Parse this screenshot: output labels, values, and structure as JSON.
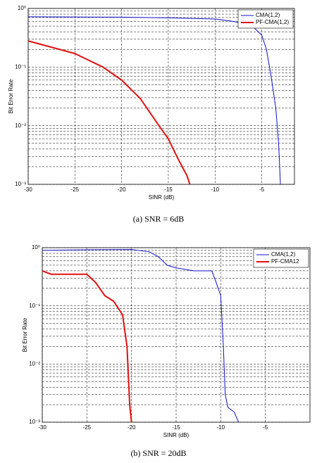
{
  "chart_data": [
    {
      "type": "line",
      "caption": "(a) SNR = 6dB",
      "xlabel": "SINR (dB)",
      "ylabel": "Bit Error Rate",
      "log_y": true,
      "grid": true,
      "legend": "upper right",
      "xlim": [
        -30,
        -1.5
      ],
      "xticks": [
        -30,
        -25,
        -20,
        -15,
        -10,
        -5
      ],
      "ylim": [
        0.001,
        1
      ],
      "yticks": [
        {
          "value": 0.001,
          "label": "10⁻³"
        },
        {
          "value": 0.01,
          "label": "10⁻²"
        },
        {
          "value": 0.1,
          "label": "10⁻¹"
        },
        {
          "value": 1,
          "label": "10⁰"
        }
      ],
      "series": [
        {
          "name": "CMA(1,2)",
          "color": "#1010c8",
          "x": [
            -30,
            -20,
            -15,
            -10,
            -8,
            -6,
            -5,
            -4.5,
            -4,
            -3.5,
            -3.2,
            -3
          ],
          "values": [
            0.72,
            0.71,
            0.69,
            0.66,
            0.6,
            0.5,
            0.35,
            0.2,
            0.07,
            0.02,
            0.005,
            0.001
          ]
        },
        {
          "name": "PF-CMA(1,2)",
          "color": "#e01010",
          "x": [
            -30,
            -25,
            -22,
            -20,
            -18,
            -16,
            -15,
            -14,
            -13,
            -12.7
          ],
          "values": [
            0.28,
            0.17,
            0.1,
            0.06,
            0.029,
            0.01,
            0.006,
            0.0028,
            0.0014,
            0.001
          ]
        }
      ]
    },
    {
      "type": "line",
      "caption": "(b) SNR = 20dB",
      "xlabel": "SINR (dB)",
      "ylabel": "Bit Error Rate",
      "log_y": true,
      "grid": true,
      "legend": "upper right",
      "xlim": [
        -30,
        0
      ],
      "xticks": [
        -30,
        -25,
        -20,
        -15,
        -10,
        -5
      ],
      "ylim": [
        0.001,
        1
      ],
      "yticks": [
        {
          "value": 0.001,
          "label": "10⁻³"
        },
        {
          "value": 0.01,
          "label": "10⁻²"
        },
        {
          "value": 0.1,
          "label": "10⁻¹"
        },
        {
          "value": 1,
          "label": "10⁰"
        }
      ],
      "series": [
        {
          "name": "CMA(1,2)",
          "color": "#1010c8",
          "x": [
            -30,
            -25,
            -20,
            -18,
            -17,
            -16,
            -15,
            -13,
            -11,
            -10.5,
            -10,
            -9.7,
            -9.5,
            -9.2,
            -8.5,
            -8
          ],
          "values": [
            0.9,
            0.92,
            0.93,
            0.85,
            0.7,
            0.5,
            0.45,
            0.4,
            0.4,
            0.25,
            0.15,
            0.02,
            0.003,
            0.0018,
            0.0015,
            0.001
          ]
        },
        {
          "name": "PF-CMA12",
          "color": "#e01010",
          "x": [
            -30,
            -29,
            -25,
            -24,
            -23,
            -22,
            -21,
            -20.5,
            -20.2,
            -20
          ],
          "values": [
            0.4,
            0.35,
            0.35,
            0.25,
            0.15,
            0.12,
            0.07,
            0.02,
            0.002,
            0.001
          ]
        }
      ]
    }
  ]
}
